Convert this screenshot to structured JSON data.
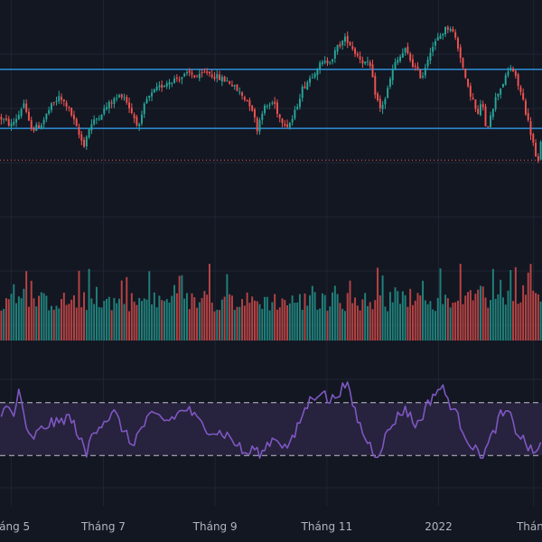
{
  "theme": {
    "background": "#131722",
    "grid": "#1f2433",
    "up": "#26a69a",
    "down": "#ef5350",
    "channel": "#2f8fd8",
    "support_dotted": "#ef5350",
    "rsi_line": "#7e57c2",
    "rsi_band_fill": "#2a2440",
    "rsi_band_line": "#c0c0c8",
    "label": "#b2b5be"
  },
  "chart_data": [
    {
      "type": "candlestick",
      "title": "",
      "x_ticks": [
        {
          "label": "háng 5",
          "pos": 0.2
        },
        {
          "label": "Tháng 7",
          "pos": 1.85
        },
        {
          "label": "Tháng 9",
          "pos": 3.85
        },
        {
          "label": "Tháng 11",
          "pos": 5.85
        },
        {
          "label": "2022",
          "pos": 7.85
        },
        {
          "label": "Tháng",
          "pos": 9.55
        }
      ],
      "xlim": [
        0,
        9.7
      ],
      "ylim": [
        0,
        100
      ],
      "channel_lines": [
        {
          "name": "resistance",
          "y": 74.2
        },
        {
          "name": "support",
          "y": 44.5
        }
      ],
      "dotted_level": 28.5,
      "keypoints": [
        [
          0.0,
          50
        ],
        [
          0.2,
          46
        ],
        [
          0.35,
          52
        ],
        [
          0.42,
          58
        ],
        [
          0.5,
          48
        ],
        [
          0.6,
          44
        ],
        [
          0.75,
          47
        ],
        [
          0.9,
          55
        ],
        [
          1.05,
          60
        ],
        [
          1.2,
          56
        ],
        [
          1.3,
          50
        ],
        [
          1.4,
          42
        ],
        [
          1.5,
          36
        ],
        [
          1.6,
          45
        ],
        [
          1.8,
          52
        ],
        [
          2.0,
          58
        ],
        [
          2.2,
          62
        ],
        [
          2.4,
          50
        ],
        [
          2.5,
          45
        ],
        [
          2.6,
          58
        ],
        [
          2.8,
          64
        ],
        [
          3.0,
          68
        ],
        [
          3.2,
          70
        ],
        [
          3.4,
          72
        ],
        [
          3.55,
          70
        ],
        [
          3.7,
          73
        ],
        [
          3.9,
          70
        ],
        [
          4.1,
          68
        ],
        [
          4.3,
          62
        ],
        [
          4.5,
          56
        ],
        [
          4.6,
          44
        ],
        [
          4.7,
          54
        ],
        [
          4.9,
          58
        ],
        [
          5.0,
          50
        ],
        [
          5.15,
          46
        ],
        [
          5.25,
          50
        ],
        [
          5.4,
          64
        ],
        [
          5.55,
          70
        ],
        [
          5.7,
          76
        ],
        [
          5.85,
          78
        ],
        [
          5.95,
          80
        ],
        [
          6.05,
          86
        ],
        [
          6.2,
          90
        ],
        [
          6.35,
          83
        ],
        [
          6.5,
          78
        ],
        [
          6.62,
          76
        ],
        [
          6.7,
          64
        ],
        [
          6.8,
          54
        ],
        [
          6.9,
          60
        ],
        [
          7.05,
          76
        ],
        [
          7.25,
          84
        ],
        [
          7.4,
          76
        ],
        [
          7.55,
          70
        ],
        [
          7.7,
          84
        ],
        [
          7.85,
          90
        ],
        [
          7.95,
          94
        ],
        [
          8.05,
          96
        ],
        [
          8.15,
          90
        ],
        [
          8.25,
          80
        ],
        [
          8.35,
          66
        ],
        [
          8.45,
          60
        ],
        [
          8.55,
          50
        ],
        [
          8.62,
          60
        ],
        [
          8.7,
          42
        ],
        [
          8.78,
          52
        ],
        [
          8.9,
          62
        ],
        [
          9.05,
          70
        ],
        [
          9.15,
          76
        ],
        [
          9.25,
          68
        ],
        [
          9.35,
          60
        ],
        [
          9.45,
          48
        ],
        [
          9.55,
          36
        ],
        [
          9.62,
          24
        ],
        [
          9.7,
          44
        ]
      ]
    },
    {
      "type": "bar",
      "name": "volume",
      "ylim": [
        0,
        100
      ]
    },
    {
      "type": "line",
      "name": "rsi",
      "ylim": [
        0,
        100
      ],
      "bands": [
        30,
        70
      ],
      "keypoints": [
        [
          0.0,
          62
        ],
        [
          0.15,
          66
        ],
        [
          0.25,
          58
        ],
        [
          0.35,
          84
        ],
        [
          0.45,
          50
        ],
        [
          0.55,
          42
        ],
        [
          0.7,
          48
        ],
        [
          0.9,
          55
        ],
        [
          1.05,
          54
        ],
        [
          1.2,
          60
        ],
        [
          1.35,
          52
        ],
        [
          1.45,
          40
        ],
        [
          1.55,
          30
        ],
        [
          1.65,
          48
        ],
        [
          1.85,
          56
        ],
        [
          2.05,
          62
        ],
        [
          2.2,
          50
        ],
        [
          2.35,
          38
        ],
        [
          2.5,
          48
        ],
        [
          2.65,
          58
        ],
        [
          2.8,
          60
        ],
        [
          3.0,
          56
        ],
        [
          3.2,
          62
        ],
        [
          3.35,
          66
        ],
        [
          3.5,
          58
        ],
        [
          3.65,
          52
        ],
        [
          3.85,
          48
        ],
        [
          4.05,
          46
        ],
        [
          4.25,
          38
        ],
        [
          4.4,
          30
        ],
        [
          4.55,
          36
        ],
        [
          4.65,
          28
        ],
        [
          4.8,
          40
        ],
        [
          4.95,
          44
        ],
        [
          5.1,
          36
        ],
        [
          5.25,
          42
        ],
        [
          5.4,
          60
        ],
        [
          5.55,
          72
        ],
        [
          5.75,
          80
        ],
        [
          5.9,
          70
        ],
        [
          6.05,
          78
        ],
        [
          6.2,
          84
        ],
        [
          6.35,
          64
        ],
        [
          6.5,
          46
        ],
        [
          6.65,
          36
        ],
        [
          6.75,
          30
        ],
        [
          6.9,
          44
        ],
        [
          7.05,
          56
        ],
        [
          7.25,
          66
        ],
        [
          7.45,
          52
        ],
        [
          7.6,
          64
        ],
        [
          7.75,
          76
        ],
        [
          7.9,
          82
        ],
        [
          8.05,
          70
        ],
        [
          8.2,
          58
        ],
        [
          8.35,
          44
        ],
        [
          8.5,
          34
        ],
        [
          8.65,
          30
        ],
        [
          8.8,
          44
        ],
        [
          8.95,
          60
        ],
        [
          9.1,
          62
        ],
        [
          9.25,
          48
        ],
        [
          9.4,
          40
        ],
        [
          9.55,
          30
        ],
        [
          9.7,
          42
        ]
      ]
    }
  ]
}
